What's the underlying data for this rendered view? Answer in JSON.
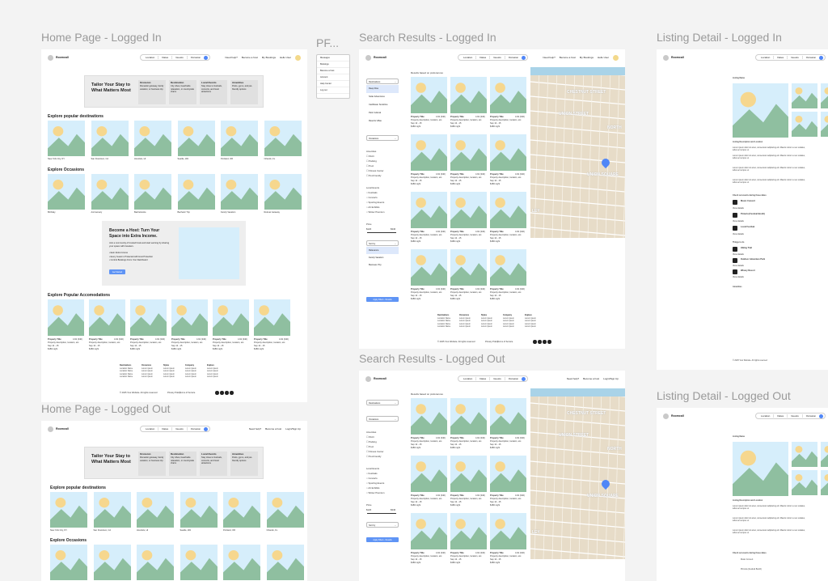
{
  "labels": {
    "home_in": "Home Page - Logged In",
    "pf": "PF...",
    "search_in": "Search Results - Logged In",
    "listing_in": "Listing Detail - Logged In",
    "home_out": "Home Page - Logged Out",
    "search_out": "Search Results - Logged Out",
    "listing_out": "Listing Detail - Logged Out"
  },
  "nav": {
    "brand": "Roomcall",
    "search": [
      "Location",
      "Dates",
      "Guests",
      "Occasion"
    ],
    "links_in": [
      "Need help?",
      "Become a host",
      "My Bookings",
      "Hello User"
    ],
    "links_out": [
      "Need help?",
      "Become a host",
      "Login/Sign Up"
    ]
  },
  "pf_menu": [
    "Messages",
    "Bookings",
    "Become a host",
    "Account",
    "Help Center",
    "Log out"
  ],
  "hero": {
    "title": "Tailor Your Stay to What Matters Most",
    "boxes": [
      {
        "title": "Occasion",
        "text": "Romantic getaway, family vacation, or business trip"
      },
      {
        "title": "Destination",
        "text": "City vibes, beachside relaxation, or countryside charm"
      },
      {
        "title": "Local Events",
        "text": "Stay close to festivals, concerts, and local attractions"
      },
      {
        "title": "Amenities",
        "text": "Pools, gyms, and pet-friendly options"
      }
    ]
  },
  "home": {
    "popular_dest_title": "Explore popular destinations",
    "popular_dest_title_out": "Explore popular destinations",
    "destinations": [
      "New York City, NY",
      "San Francisco, CA",
      "Honolulu, HI",
      "Seattle, WA",
      "Portland, OR",
      "Orlando, FL"
    ],
    "occasions_title": "Explore Occasions",
    "occasions": [
      "Birthday",
      "Anniversary",
      "Bachelorette",
      "Bachelor Trip",
      "Family Vacation",
      "Retreat Getaway"
    ],
    "host_title": "Become a Host: Turn Your Space into Extra Income.",
    "host_text": "Join a community of trusted hosts and start earning by sharing your space with travelers.",
    "host_bullets": [
      "Earn Extra Income",
      "Every Guest is Protected with Host Protection",
      "Control Bookings From Your Dashboard"
    ],
    "host_button": "Get Started",
    "accom_title": "Explore Popular Accomodations",
    "property_title": "Property Title",
    "property_rating": "4.92 (340)",
    "property_desc": "Property description, location, etc.",
    "property_dates": "Sep 12 - 15",
    "property_price": "$180 night",
    "copyright": "© 2025 Your Website. All rights reserved",
    "footer_cols": [
      {
        "title": "Destinations",
        "items": [
          "Location Name",
          "Location Name",
          "Location Name",
          "Location Name"
        ]
      },
      {
        "title": "Occasions",
        "items": [
          "Lorem ipsum",
          "Lorem ipsum",
          "Lorem ipsum",
          "Lorem ipsum"
        ]
      },
      {
        "title": "Styles",
        "items": [
          "Lorem ipsum",
          "Lorem ipsum",
          "Lorem ipsum",
          "Lorem ipsum"
        ]
      },
      {
        "title": "Company",
        "items": [
          "Lorem ipsum",
          "Lorem ipsum",
          "Lorem ipsum",
          "Lorem ipsum"
        ]
      },
      {
        "title": "Explore",
        "items": [
          "Lorem ipsum",
          "Lorem ipsum",
          "Lorem ipsum",
          "Lorem ipsum"
        ]
      }
    ],
    "legal": [
      "Privacy Policy",
      "Terms of Service"
    ]
  },
  "search": {
    "results_title": "Results based on preferences",
    "destinations_dd": "Destinations",
    "dest_options": [
      "Deep Dive",
      "Solar Adventures",
      "Caribbean Sunshine",
      "Park Cultural",
      "Resorts Villas"
    ],
    "occasion_dd": "Occasions",
    "amenities_title": "Amenities",
    "amenities": [
      "Wi-Fi",
      "Parking",
      "Pool",
      "Fitness Center",
      "Pet-Friendly"
    ],
    "events_title": "Local Events",
    "events": [
      "Festivals",
      "Concerts",
      "Sporting Events",
      "Art Exhibits",
      "Winter Premium"
    ],
    "price_title": "Price",
    "price_min": "$120",
    "price_max": "$340",
    "sort_dd": "Sort by",
    "sort_options": [
      "Relevance",
      "Family Vacation",
      "Business Trip"
    ],
    "apply": "Apply Filters - Results",
    "map_labels": [
      "CHESTNUT STREET",
      "UNION STREET",
      "NORTH",
      "UNION SQUARE",
      "LEY"
    ]
  },
  "listing": {
    "listing_name": "Listing Name",
    "desc_title": "Listing Description and Location",
    "things_title": "Things to do",
    "events_title": "Check out events during these dates",
    "events": [
      "Music Concert",
      "Pizzeria (Festival Booth)",
      "Local Festival"
    ],
    "things": [
      "Hiking Trail",
      "Outdoor Adventure Park",
      "Winery Resort"
    ],
    "amenities_title": "Amenities",
    "view_details": "View details",
    "lorem": "Lorem ipsum dolor sit amet, consectetur adipiscing elit. Mauris rutrum a nec sodales, tellus ac tempus ut."
  },
  "colors": {
    "accent": "#4f86f7",
    "sky": "#d6eefb",
    "mountain": "#8fbfa0",
    "sun": "#f6d78e"
  }
}
